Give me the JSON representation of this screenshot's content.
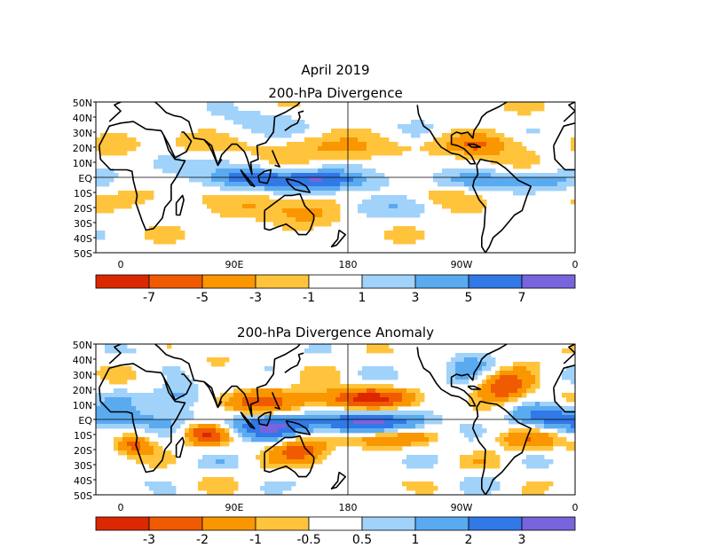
{
  "header": {
    "title": "April 2019"
  },
  "colors": {
    "neg": [
      "#dc2800",
      "#f05a00",
      "#fa9600",
      "#ffc43c"
    ],
    "zero": "#ffffff",
    "pos": [
      "#a0d2fa",
      "#5aaaf0",
      "#3278e6",
      "#7864dc"
    ],
    "frame": "#000000"
  },
  "panels": [
    {
      "id": "div",
      "title": "200-hPa Divergence",
      "lat_labels": [
        "50N",
        "40N",
        "30N",
        "20N",
        "10N",
        "EQ",
        "10S",
        "20S",
        "30S",
        "40S",
        "50S"
      ],
      "lon_labels": [
        "0",
        "90E",
        "180",
        "90W",
        "0"
      ],
      "colorbar": {
        "labels": [
          "-7",
          "-5",
          "-3",
          "-1",
          "1",
          "3",
          "5",
          "7"
        ]
      },
      "map": {
        "kind": "divergence"
      }
    },
    {
      "id": "anom",
      "title": "200-hPa Divergence Anomaly",
      "lat_labels": [
        "50N",
        "40N",
        "30N",
        "20N",
        "10N",
        "EQ",
        "10S",
        "20S",
        "30S",
        "40S",
        "50S"
      ],
      "lon_labels": [
        "0",
        "90E",
        "180",
        "90W",
        "0"
      ],
      "colorbar": {
        "labels": [
          "-3",
          "-2",
          "-1",
          "-0.5",
          "0.5",
          "1",
          "2",
          "3"
        ]
      },
      "map": {
        "kind": "anomaly"
      }
    }
  ]
}
